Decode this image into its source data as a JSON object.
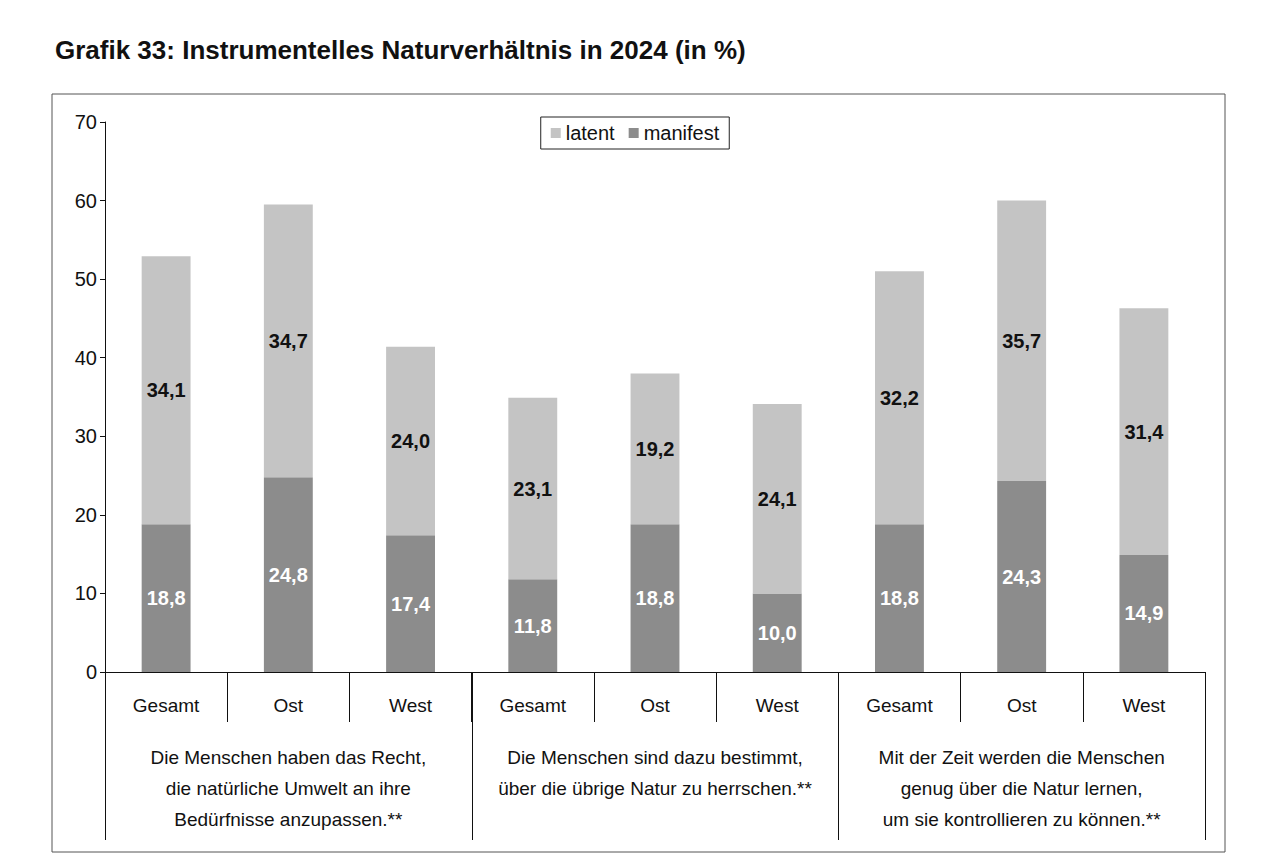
{
  "chart_data": {
    "type": "bar",
    "title": "Grafik 33: Instrumentelles Naturverhältnis in 2024 (in %)",
    "categories": [
      "Gesamt",
      "Ost",
      "West",
      "Gesamt",
      "Ost",
      "West",
      "Gesamt",
      "Ost",
      "West"
    ],
    "groups": [
      {
        "label": "Die Menschen haben das Recht,\ndie natürliche Umwelt an ihre\nBedürfnisse anzupassen.**",
        "count": 3
      },
      {
        "label": "Die Menschen sind dazu bestimmt,\nüber die übrige Natur zu herrschen.**",
        "count": 3
      },
      {
        "label": "Mit der Zeit werden die Menschen\ngenug über die Natur lernen,\num sie kontrollieren zu können.**",
        "count": 3
      }
    ],
    "series": [
      {
        "name": "manifest",
        "color": "#8c8c8c",
        "values": [
          18.8,
          24.8,
          17.4,
          11.8,
          18.8,
          10.0,
          18.8,
          24.3,
          14.9
        ],
        "value_labels": [
          "18,8",
          "24,8",
          "17,4",
          "11,8",
          "18,8",
          "10,0",
          "18,8",
          "24,3",
          "14,9"
        ]
      },
      {
        "name": "latent",
        "color": "#c4c4c4",
        "values": [
          34.1,
          34.7,
          24.0,
          23.1,
          19.2,
          24.1,
          32.2,
          35.7,
          31.4
        ],
        "value_labels": [
          "34,1",
          "34,7",
          "24,0",
          "23,1",
          "19,2",
          "24,1",
          "32,2",
          "35,7",
          "31,4"
        ]
      }
    ],
    "legend_order": [
      "latent",
      "manifest"
    ],
    "ylim": [
      0,
      70
    ],
    "yticks": [
      0,
      10,
      20,
      30,
      40,
      50,
      60,
      70
    ],
    "stacked": true,
    "data_labels": true,
    "legend": "top",
    "grid": false
  }
}
